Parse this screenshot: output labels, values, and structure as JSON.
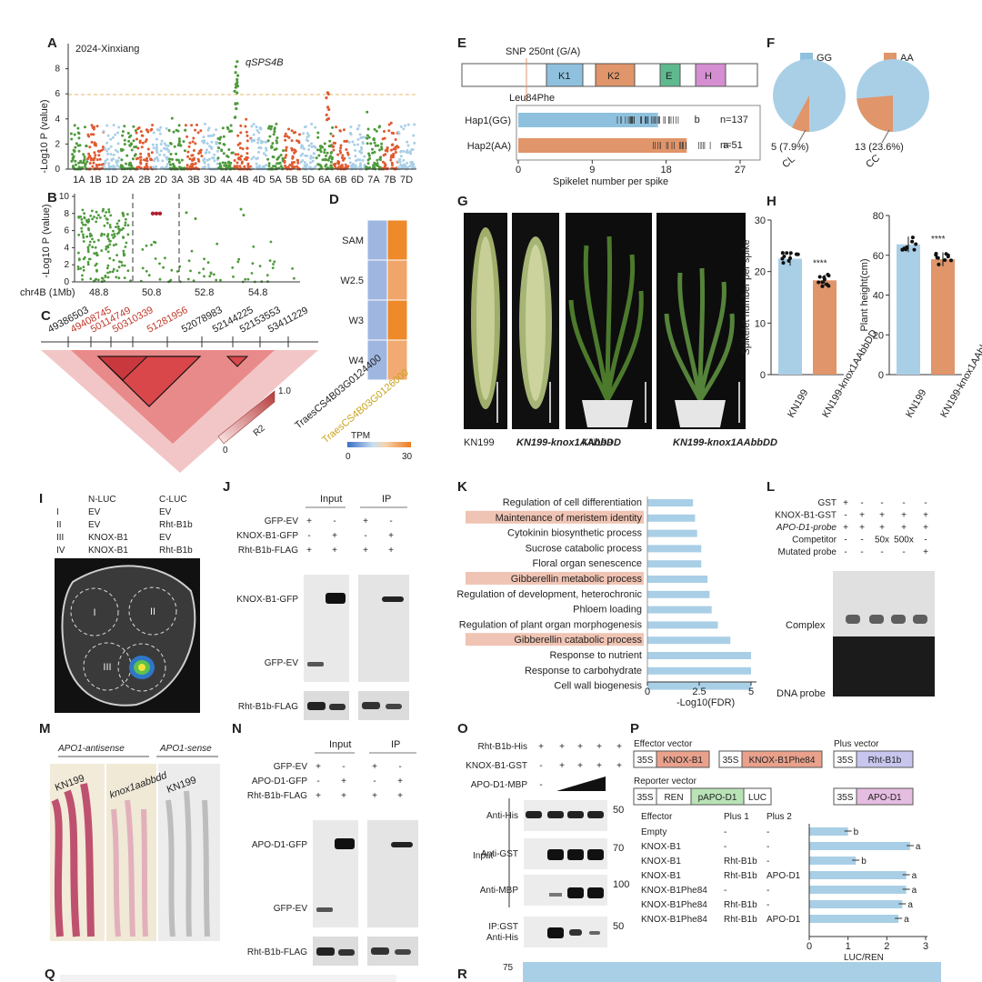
{
  "colors": {
    "blue": "#8fc1de",
    "orange": "#e0956a",
    "green": "#4e9a3c",
    "red": "#e05a30",
    "lightblue": "#a9cfe6",
    "salmon": "#f0c4b4",
    "ld": "#d9474b"
  },
  "A": {
    "letter": "A",
    "location": "2024-Xinxiang",
    "ylabel": "-Log10 P (value)",
    "peak": "qSPS4B",
    "yticks": [
      "0",
      "2",
      "4",
      "6",
      "8"
    ],
    "chromosomes": [
      "1A",
      "1B",
      "1D",
      "2A",
      "2B",
      "2D",
      "3A",
      "3B",
      "3D",
      "4A",
      "4B",
      "4D",
      "5A",
      "5B",
      "5D",
      "6A",
      "6B",
      "6D",
      "7A",
      "7B",
      "7D"
    ]
  },
  "B": {
    "letter": "B",
    "ylabel": "-Log10 P (value)",
    "yticks": [
      "0",
      "2",
      "4",
      "6",
      "8",
      "10"
    ],
    "xlabel": "chr4B (1Mb)",
    "xticks": [
      "48.8",
      "50.8",
      "52.8",
      "54.8"
    ]
  },
  "C": {
    "letter": "C",
    "positions": [
      "49386503",
      "49408745",
      "50114749",
      "50310339",
      "51281956",
      "52078983",
      "52144225",
      "52153553",
      "53411229"
    ],
    "red_positions": [
      1,
      2,
      3,
      4
    ],
    "legend_label": "R2",
    "legend_min": "0",
    "legend_max": "1.0"
  },
  "D": {
    "letter": "D",
    "rows": [
      "SAM",
      "W2.5",
      "W3",
      "W4"
    ],
    "genes": [
      "TraesCS4B03G0124400",
      "TraesCS4B03G0126000"
    ],
    "tpm_label": "TPM",
    "tpm_min": "0",
    "tpm_max": "30"
  },
  "E": {
    "letter": "E",
    "snp": "SNP 250nt (G/A)",
    "mutation": "Leu84Phe",
    "domains": [
      "K1",
      "K2",
      "E",
      "H"
    ],
    "haps": [
      {
        "label": "Hap1(GG)",
        "mean": 17,
        "n": "n=137",
        "sig": "b"
      },
      {
        "label": "Hap2(AA)",
        "mean": 20.5,
        "n": "n=51",
        "sig": "a"
      }
    ],
    "xticks": [
      "0",
      "9",
      "18",
      "27"
    ],
    "xlabel": "Spikelet number per spike"
  },
  "F": {
    "letter": "F",
    "pies": [
      {
        "label": "GG",
        "value_label": "5 (7.9%)",
        "cat": "CL",
        "fraction": 0.079
      },
      {
        "label": "AA",
        "value_label": "13 (23.6%)",
        "cat": "CC",
        "fraction": 0.236
      }
    ]
  },
  "G": {
    "letter": "G",
    "labels": [
      "KN199",
      "KN199-knox1AAbbDD",
      "KN199",
      "KN199-knox1AAbbDD"
    ]
  },
  "H": {
    "letter": "H",
    "chart1": {
      "ylabel": "Spikelet number per spike",
      "yticks": [
        "0",
        "10",
        "20",
        "30"
      ],
      "values": [
        22.5,
        18.3
      ],
      "sig": "****"
    },
    "chart2": {
      "ylabel": "Plant height(cm)",
      "yticks": [
        "0",
        "20",
        "40",
        "60",
        "80"
      ],
      "values": [
        65.5,
        58
      ],
      "sig": "****"
    },
    "groups": [
      "KN199",
      "KN199-knox1AAbbDD"
    ]
  },
  "I": {
    "letter": "I",
    "col1": "N-LUC",
    "col2": "C-LUC",
    "rows": [
      {
        "num": "I",
        "n": "EV",
        "c": "EV"
      },
      {
        "num": "II",
        "n": "EV",
        "c": "Rht-B1b"
      },
      {
        "num": "III",
        "n": "KNOX-B1",
        "c": "EV"
      },
      {
        "num": "IV",
        "n": "KNOX-B1",
        "c": "Rht-B1b"
      }
    ],
    "circle_labels": [
      "I",
      "II",
      "III",
      "IV"
    ]
  },
  "J": {
    "letter": "J",
    "input": "Input",
    "ip": "IP",
    "rows": [
      {
        "label": "GFP-EV",
        "vals": [
          "+",
          "-",
          "+",
          "-"
        ]
      },
      {
        "label": "KNOX-B1-GFP",
        "vals": [
          "-",
          "+",
          "-",
          "+"
        ]
      },
      {
        "label": "Rht-B1b-FLAG",
        "vals": [
          "+",
          "+",
          "+",
          "+"
        ]
      }
    ],
    "blots": [
      "KNOX-B1-GFP",
      "GFP-EV",
      "Rht-B1b-FLAG"
    ]
  },
  "K": {
    "letter": "K",
    "terms": [
      {
        "name": "Regulation of cell differentiation",
        "v": 2.2,
        "hl": false
      },
      {
        "name": "Maintenance of meristem identity",
        "v": 2.3,
        "hl": true
      },
      {
        "name": "Cytokinin biosynthetic process",
        "v": 2.4,
        "hl": false
      },
      {
        "name": "Sucrose catabolic process",
        "v": 2.6,
        "hl": false
      },
      {
        "name": "Floral organ senescence",
        "v": 2.6,
        "hl": false
      },
      {
        "name": "Gibberellin metabolic process",
        "v": 2.9,
        "hl": true
      },
      {
        "name": "Regulation of development, heterochronic",
        "v": 3.0,
        "hl": false
      },
      {
        "name": "Phloem loading",
        "v": 3.1,
        "hl": false
      },
      {
        "name": "Regulation of plant organ morphogenesis",
        "v": 3.4,
        "hl": false
      },
      {
        "name": "Gibberellin catabolic process",
        "v": 4.0,
        "hl": true
      },
      {
        "name": "Response to nutrient",
        "v": 5.0,
        "hl": false
      },
      {
        "name": "Response to carbohydrate",
        "v": 5.0,
        "hl": false
      },
      {
        "name": "Cell wall biogenesis",
        "v": 5.0,
        "hl": false
      }
    ],
    "xticks": [
      "0",
      "2.5",
      "5"
    ],
    "xlabel": "-Log10(FDR)"
  },
  "L": {
    "letter": "L",
    "rows": [
      {
        "label": "GST",
        "vals": [
          "+",
          "-",
          "-",
          "-",
          "-"
        ]
      },
      {
        "label": "KNOX-B1-GST",
        "vals": [
          "-",
          "+",
          "+",
          "+",
          "+"
        ]
      },
      {
        "label": "APO-D1-probe",
        "vals": [
          "+",
          "+",
          "+",
          "+",
          "+"
        ]
      },
      {
        "label": "Competitor",
        "vals": [
          "-",
          "-",
          "50x",
          "500x",
          "-"
        ]
      },
      {
        "label": "Mutated probe",
        "vals": [
          "-",
          "-",
          "-",
          "-",
          "+"
        ]
      }
    ],
    "complex": "Complex",
    "probe": "DNA probe"
  },
  "M": {
    "letter": "M",
    "antisense": "APO1-antisense",
    "sense": "APO1-sense",
    "labels": [
      "KN199",
      "knox1aabbdd",
      "KN199"
    ]
  },
  "N": {
    "letter": "N",
    "input": "Input",
    "ip": "IP",
    "rows": [
      {
        "label": "GFP-EV",
        "vals": [
          "+",
          "-",
          "+",
          "-"
        ]
      },
      {
        "label": "APO-D1-GFP",
        "vals": [
          "-",
          "+",
          "-",
          "+"
        ]
      },
      {
        "label": "Rht-B1b-FLAG",
        "vals": [
          "+",
          "+",
          "+",
          "+"
        ]
      }
    ],
    "blots": [
      "APO-D1-GFP",
      "GFP-EV",
      "Rht-B1b-FLAG"
    ]
  },
  "O": {
    "letter": "O",
    "rows": [
      {
        "label": "Rht-B1b-His",
        "vals": [
          "+",
          "+",
          "+",
          "+",
          "+"
        ]
      },
      {
        "label": "KNOX-B1-GST",
        "vals": [
          "-",
          "+",
          "+",
          "+",
          "+"
        ]
      },
      {
        "label": "APO-D1-MBP",
        "vals": [
          "-",
          "",
          "",
          "",
          ""
        ]
      }
    ],
    "blots": [
      "Anti-His",
      "Anti-GST",
      "Anti-MBP",
      "IP:GST Anti-His"
    ],
    "input": "Input",
    "sizes": [
      "50",
      "70",
      "100",
      "50"
    ]
  },
  "P": {
    "letter": "P",
    "effector": "Effector vector",
    "plus": "Plus vector",
    "reporter": "Reporter vector",
    "boxes": {
      "p35s": "35S",
      "knox": "KNOX-B1",
      "knox_mut": "KNOX-B1Phe84",
      "rht": "Rht-B1b",
      "ren": "REN",
      "papo": "pAPO-D1",
      "luc": "LUC",
      "apo": "APO-D1"
    },
    "headers": [
      "Effector",
      "Plus 1",
      "Plus 2"
    ],
    "rows": [
      {
        "e": "Empty",
        "p1": "-",
        "p2": "-",
        "v": 1.0,
        "sig": "b"
      },
      {
        "e": "KNOX-B1",
        "p1": "-",
        "p2": "-",
        "v": 2.6,
        "sig": "a"
      },
      {
        "e": "KNOX-B1",
        "p1": "Rht-B1b",
        "p2": "-",
        "v": 1.2,
        "sig": "b"
      },
      {
        "e": "KNOX-B1",
        "p1": "Rht-B1b",
        "p2": "APO-D1",
        "v": 2.5,
        "sig": "a"
      },
      {
        "e": "KNOX-B1Phe84",
        "p1": "-",
        "p2": "-",
        "v": 2.5,
        "sig": "a"
      },
      {
        "e": "KNOX-B1Phe84",
        "p1": "Rht-B1b",
        "p2": "-",
        "v": 2.4,
        "sig": "a"
      },
      {
        "e": "KNOX-B1Phe84",
        "p1": "Rht-B1b",
        "p2": "APO-D1",
        "v": 2.3,
        "sig": "a"
      }
    ],
    "xticks": [
      "0",
      "1",
      "2",
      "3"
    ],
    "xlabel": "LUC/REN"
  },
  "Q": {
    "letter": "Q"
  },
  "R": {
    "letter": "R",
    "ytick": "75"
  }
}
